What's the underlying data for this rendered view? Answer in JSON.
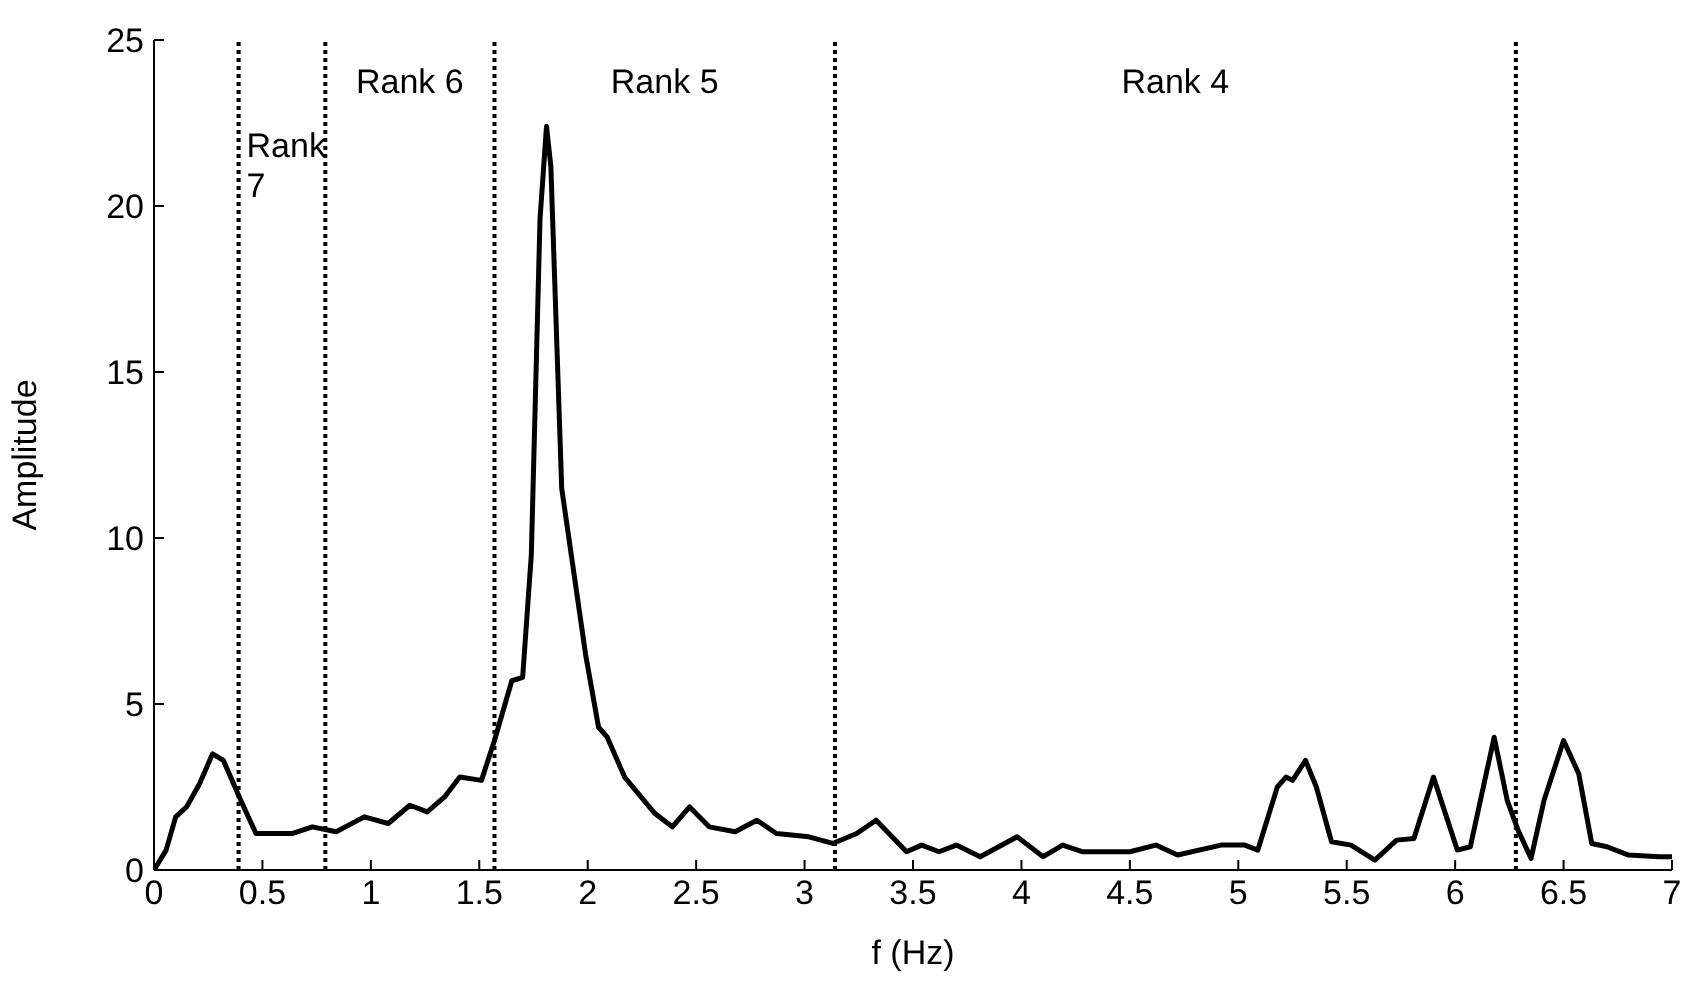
{
  "chart_data": {
    "type": "line",
    "xlabel": "f (Hz)",
    "ylabel": "Amplitude",
    "xlim": [
      0,
      7
    ],
    "xticks": [
      0,
      0.5,
      1,
      1.5,
      2,
      2.5,
      3,
      3.5,
      4,
      4.5,
      5,
      5.5,
      6,
      6.5,
      7
    ],
    "ylim": [
      0,
      25
    ],
    "yticks": [
      0,
      5,
      10,
      15,
      20,
      25
    ],
    "line_style": "solid",
    "marker": "none",
    "series": [
      {
        "color": "#000000",
        "x": [
          0,
          0.056,
          0.1,
          0.15,
          0.21,
          0.27,
          0.32,
          0.4,
          0.47,
          0.64,
          0.73,
          0.84,
          0.97,
          1.08,
          1.18,
          1.26,
          1.34,
          1.41,
          1.51,
          1.57,
          1.65,
          1.7,
          1.74,
          1.78,
          1.81,
          1.83,
          1.88,
          1.99,
          2.05,
          2.09,
          2.17,
          2.31,
          2.39,
          2.47,
          2.56,
          2.68,
          2.78,
          2.87,
          3.02,
          3.13,
          3.24,
          3.33,
          3.47,
          3.54,
          3.62,
          3.7,
          3.81,
          3.98,
          4.1,
          4.19,
          4.28,
          4.5,
          4.62,
          4.72,
          4.92,
          5.03,
          5.09,
          5.18,
          5.22,
          5.25,
          5.31,
          5.36,
          5.43,
          5.52,
          5.63,
          5.73,
          5.81,
          5.9,
          5.96,
          6.01,
          6.07,
          6.18,
          6.24,
          6.29,
          6.35,
          6.41,
          6.5,
          6.57,
          6.63,
          6.7,
          6.8,
          6.94,
          7
        ],
        "values": [
          0,
          0.6,
          1.6,
          1.9,
          2.6,
          3.5,
          3.3,
          2.1,
          1.1,
          1.1,
          1.3,
          1.15,
          1.6,
          1.4,
          1.95,
          1.75,
          2.2,
          2.8,
          2.7,
          3.9,
          5.7,
          5.8,
          9.5,
          19.6,
          22.4,
          21.2,
          11.5,
          6.5,
          4.3,
          4,
          2.8,
          1.7,
          1.3,
          1.9,
          1.3,
          1.15,
          1.5,
          1.1,
          1,
          0.8,
          1.1,
          1.5,
          0.55,
          0.75,
          0.55,
          0.75,
          0.4,
          1,
          0.4,
          0.75,
          0.55,
          0.55,
          0.75,
          0.45,
          0.75,
          0.75,
          0.6,
          2.5,
          2.8,
          2.7,
          3.3,
          2.5,
          0.85,
          0.75,
          0.3,
          0.9,
          0.95,
          2.8,
          1.6,
          0.6,
          0.7,
          4,
          2.1,
          1.2,
          0.35,
          2.1,
          3.9,
          2.9,
          0.8,
          0.7,
          0.45,
          0.4,
          0.4
        ]
      }
    ],
    "ref_lines": [
      {
        "axis": "x",
        "value": 0.39,
        "line_style": "dotted",
        "color": "#000000"
      },
      {
        "axis": "x",
        "value": 0.79,
        "line_style": "dotted",
        "color": "#000000"
      },
      {
        "axis": "x",
        "value": 1.57,
        "line_style": "dotted",
        "color": "#000000"
      },
      {
        "axis": "x",
        "value": 3.14,
        "line_style": "dotted",
        "color": "#000000"
      },
      {
        "axis": "x",
        "value": 6.28,
        "line_style": "dotted",
        "color": "#000000"
      }
    ],
    "annotations": [
      "Rank 7",
      "Rank 6",
      "Rank 5",
      "Rank 4"
    ]
  }
}
